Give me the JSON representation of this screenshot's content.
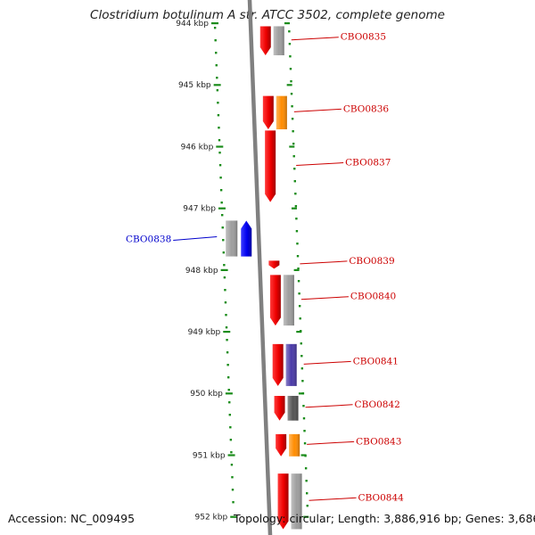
{
  "title": "Clostridium botulinum A str. ATCC 3502, complete genome",
  "footer": {
    "accession": "Accession: NC_009495",
    "topology": "Topology: circular; Length: 3,886,916 bp; Genes: 3,686"
  },
  "colors": {
    "backbone": "#808080",
    "ticks": "#1a8c1a",
    "forward_label": "#cc0000",
    "reverse_label": "#0000cc"
  },
  "ticks": [
    {
      "label": "944 kbp"
    },
    {
      "label": "945 kbp"
    },
    {
      "label": "946 kbp"
    },
    {
      "label": "947 kbp"
    },
    {
      "label": "948 kbp"
    },
    {
      "label": "949 kbp"
    },
    {
      "label": "950 kbp"
    },
    {
      "label": "951 kbp"
    },
    {
      "label": "952 kbp"
    }
  ],
  "genes": [
    {
      "label": "CBO0835",
      "strand": "forward",
      "start_kbp": 944.05,
      "end_kbp": 944.52,
      "feature_color": "#9e9e9e"
    },
    {
      "label": "CBO0836",
      "strand": "forward",
      "start_kbp": 945.18,
      "end_kbp": 945.72,
      "feature_color": "#ff8c00"
    },
    {
      "label": "CBO0837",
      "strand": "forward",
      "start_kbp": 945.74,
      "end_kbp": 946.9,
      "feature_color": ""
    },
    {
      "label": "CBO0838",
      "strand": "reverse",
      "start_kbp": 947.2,
      "end_kbp": 947.78,
      "feature_color": "#9e9e9e"
    },
    {
      "label": "CBO0839",
      "strand": "forward",
      "start_kbp": 947.85,
      "end_kbp": 947.98,
      "feature_color": ""
    },
    {
      "label": "CBO0840",
      "strand": "forward",
      "start_kbp": 948.08,
      "end_kbp": 948.9,
      "feature_color": "#9e9e9e"
    },
    {
      "label": "CBO0841",
      "strand": "forward",
      "start_kbp": 949.2,
      "end_kbp": 949.88,
      "feature_color": "#4a3aa8"
    },
    {
      "label": "CBO0842",
      "strand": "forward",
      "start_kbp": 950.04,
      "end_kbp": 950.44,
      "feature_color": "#555555"
    },
    {
      "label": "CBO0843",
      "strand": "forward",
      "start_kbp": 950.66,
      "end_kbp": 951.02,
      "feature_color": "#ff8c00"
    },
    {
      "label": "CBO0844",
      "strand": "forward",
      "start_kbp": 951.3,
      "end_kbp": 952.2,
      "feature_color": "#9e9e9e"
    }
  ]
}
